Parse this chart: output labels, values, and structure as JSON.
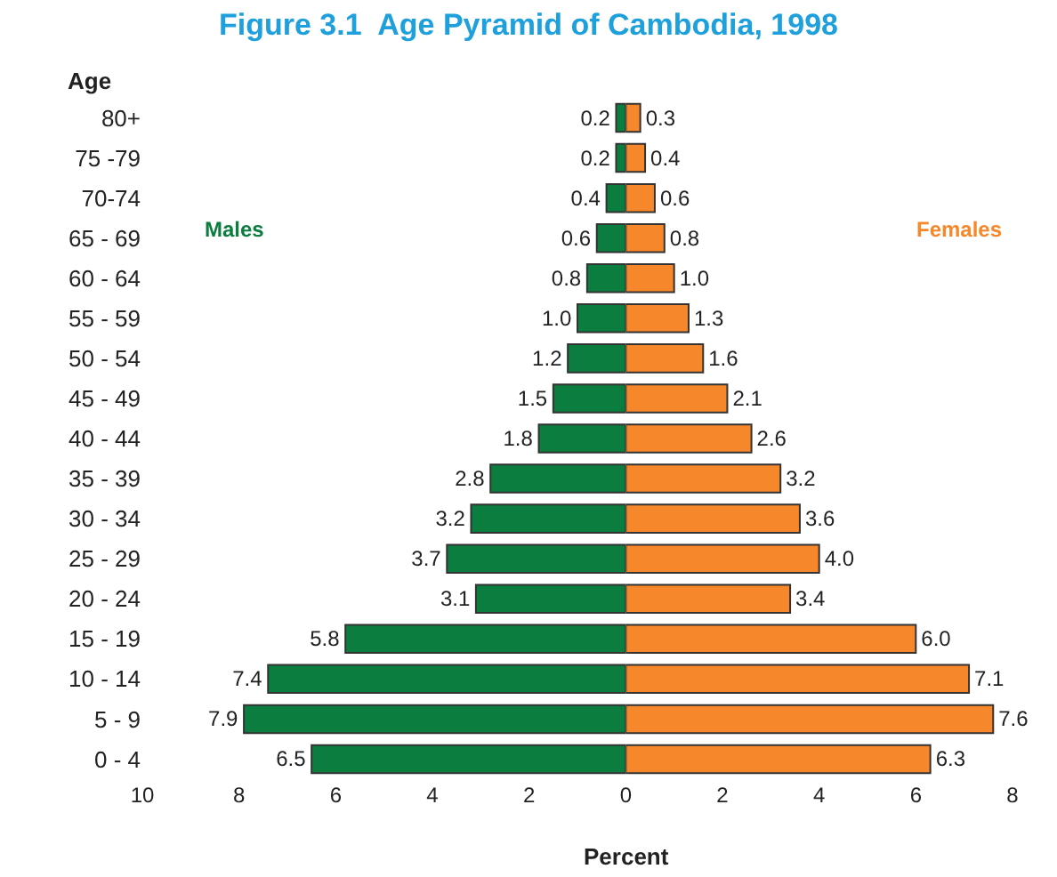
{
  "chart_data": [
    {
      "type": "bar",
      "orientation": "horizontal",
      "title": "Figure 3.1  Age Pyramid of Cambodia, 1998",
      "xlabel": "Percent",
      "ylabel": "Age",
      "categories": [
        "80+",
        "75 -79",
        "70-74",
        "65 - 69",
        "60 - 64",
        "55 - 59",
        "50 - 54",
        "45 - 49",
        "40 - 44",
        "35 - 39",
        "30 - 34",
        "25 - 29",
        "20 - 24",
        "15 - 19",
        "10 - 14",
        "5 - 9",
        "0 - 4"
      ],
      "series": [
        {
          "name": "Males",
          "color": "#0b7d3e",
          "values": [
            0.2,
            0.2,
            0.4,
            0.6,
            0.8,
            1.0,
            1.2,
            1.5,
            1.8,
            2.8,
            3.2,
            3.7,
            3.1,
            5.8,
            7.4,
            7.9,
            6.5
          ],
          "value_labels": [
            "0.2",
            "0.2",
            "0.4",
            "0.6",
            "0.8",
            "1.0",
            "1.2",
            "1.5",
            "1.8",
            "2.8",
            "3.2",
            "3.7",
            "3.1",
            "5.8",
            "7.4",
            "7.9",
            "6.5"
          ]
        }
      ],
      "xlim": [
        10,
        0
      ],
      "xticks": [
        10,
        8,
        6,
        4,
        2
      ],
      "legend": false
    },
    {
      "type": "bar",
      "orientation": "horizontal",
      "series": [
        {
          "name": "Females",
          "color": "#f7872b",
          "values": [
            0.3,
            0.4,
            0.6,
            0.8,
            1.0,
            1.3,
            1.6,
            2.1,
            2.6,
            3.2,
            3.6,
            4.0,
            3.4,
            6.0,
            7.1,
            7.6,
            6.3
          ],
          "value_labels": [
            "0.3",
            "0.4",
            "0.6",
            "0.8",
            "1.0",
            "1.3",
            "1.6",
            "2.1",
            "2.6",
            "3.2",
            "3.6",
            "4.0",
            "3.4",
            "6.0",
            "7.1",
            "7.6",
            "6.3"
          ]
        }
      ],
      "xlim": [
        0,
        8
      ],
      "xticks": [
        0,
        2,
        4,
        6,
        8
      ],
      "tick_labels": "x",
      "legend": false
    }
  ]
}
